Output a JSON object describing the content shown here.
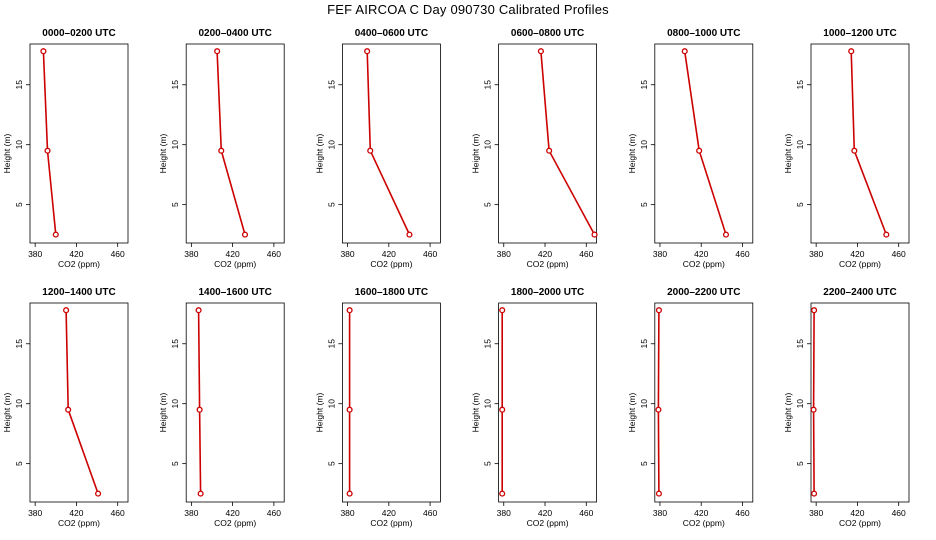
{
  "page": {
    "title": "FEF  AIRCOA C  Day 090730  Calibrated Profiles"
  },
  "chart_data": [
    {
      "type": "line",
      "title": "0000–0200 UTC",
      "xlabel": "CO2 (ppm)",
      "ylabel": "Height (m)",
      "xlim": [
        375,
        470
      ],
      "ylim": [
        1.8,
        18.4
      ],
      "xticks": [
        380,
        420,
        460
      ],
      "yticks": [
        5,
        10,
        15
      ],
      "x": [
        388,
        392,
        400
      ],
      "y": [
        17.8,
        9.5,
        2.5
      ],
      "color": "#cc0000"
    },
    {
      "type": "line",
      "title": "0200–0400 UTC",
      "xlabel": "CO2 (ppm)",
      "ylabel": "Height (m)",
      "xlim": [
        375,
        470
      ],
      "ylim": [
        1.8,
        18.4
      ],
      "xticks": [
        380,
        420,
        460
      ],
      "yticks": [
        5,
        10,
        15
      ],
      "x": [
        405,
        409,
        432
      ],
      "y": [
        17.8,
        9.5,
        2.5
      ],
      "color": "#cc0000"
    },
    {
      "type": "line",
      "title": "0400–0600 UTC",
      "xlabel": "CO2 (ppm)",
      "ylabel": "Height (m)",
      "xlim": [
        375,
        470
      ],
      "ylim": [
        1.8,
        18.4
      ],
      "xticks": [
        380,
        420,
        460
      ],
      "yticks": [
        5,
        10,
        15
      ],
      "x": [
        399,
        402,
        440
      ],
      "y": [
        17.8,
        9.5,
        2.5
      ],
      "color": "#cc0000"
    },
    {
      "type": "line",
      "title": "0600–0800 UTC",
      "xlabel": "CO2 (ppm)",
      "ylabel": "Height (m)",
      "xlim": [
        375,
        470
      ],
      "ylim": [
        1.8,
        18.4
      ],
      "xticks": [
        380,
        420,
        460
      ],
      "yticks": [
        5,
        10,
        15
      ],
      "x": [
        416,
        424,
        468
      ],
      "y": [
        17.8,
        9.5,
        2.5
      ],
      "color": "#cc0000"
    },
    {
      "type": "line",
      "title": "0800–1000 UTC",
      "xlabel": "CO2 (ppm)",
      "ylabel": "Height (m)",
      "xlim": [
        375,
        470
      ],
      "ylim": [
        1.8,
        18.4
      ],
      "xticks": [
        380,
        420,
        460
      ],
      "yticks": [
        5,
        10,
        15
      ],
      "x": [
        404,
        418,
        444
      ],
      "y": [
        17.8,
        9.5,
        2.5
      ],
      "color": "#cc0000"
    },
    {
      "type": "line",
      "title": "1000–1200 UTC",
      "xlabel": "CO2 (ppm)",
      "ylabel": "Height (m)",
      "xlim": [
        375,
        470
      ],
      "ylim": [
        1.8,
        18.4
      ],
      "xticks": [
        380,
        420,
        460
      ],
      "yticks": [
        5,
        10,
        15
      ],
      "x": [
        414,
        417,
        448
      ],
      "y": [
        17.8,
        9.5,
        2.5
      ],
      "color": "#cc0000"
    },
    {
      "type": "line",
      "title": "1200–1400 UTC",
      "xlabel": "CO2 (ppm)",
      "ylabel": "Height (m)",
      "xlim": [
        375,
        470
      ],
      "ylim": [
        1.8,
        18.4
      ],
      "xticks": [
        380,
        420,
        460
      ],
      "yticks": [
        5,
        10,
        15
      ],
      "x": [
        410,
        412,
        441
      ],
      "y": [
        17.8,
        9.5,
        2.5
      ],
      "color": "#cc0000"
    },
    {
      "type": "line",
      "title": "1400–1600 UTC",
      "xlabel": "CO2 (ppm)",
      "ylabel": "Height (m)",
      "xlim": [
        375,
        470
      ],
      "ylim": [
        1.8,
        18.4
      ],
      "xticks": [
        380,
        420,
        460
      ],
      "yticks": [
        5,
        10,
        15
      ],
      "x": [
        387,
        388,
        389
      ],
      "y": [
        17.8,
        9.5,
        2.5
      ],
      "color": "#cc0000"
    },
    {
      "type": "line",
      "title": "1600–1800 UTC",
      "xlabel": "CO2 (ppm)",
      "ylabel": "Height (m)",
      "xlim": [
        375,
        470
      ],
      "ylim": [
        1.8,
        18.4
      ],
      "xticks": [
        380,
        420,
        460
      ],
      "yticks": [
        5,
        10,
        15
      ],
      "x": [
        382,
        382,
        382
      ],
      "y": [
        17.8,
        9.5,
        2.5
      ],
      "color": "#cc0000"
    },
    {
      "type": "line",
      "title": "1800–2000 UTC",
      "xlabel": "CO2 (ppm)",
      "ylabel": "Height (m)",
      "xlim": [
        375,
        470
      ],
      "ylim": [
        1.8,
        18.4
      ],
      "xticks": [
        380,
        420,
        460
      ],
      "yticks": [
        5,
        10,
        15
      ],
      "x": [
        378.5,
        378.5,
        378.5
      ],
      "y": [
        17.8,
        9.5,
        2.5
      ],
      "color": "#cc0000"
    },
    {
      "type": "line",
      "title": "2000–2200 UTC",
      "xlabel": "CO2 (ppm)",
      "ylabel": "Height (m)",
      "xlim": [
        375,
        470
      ],
      "ylim": [
        1.8,
        18.4
      ],
      "xticks": [
        380,
        420,
        460
      ],
      "yticks": [
        5,
        10,
        15
      ],
      "x": [
        379,
        378.5,
        379
      ],
      "y": [
        17.8,
        9.5,
        2.5
      ],
      "color": "#cc0000"
    },
    {
      "type": "line",
      "title": "2200–2400 UTC",
      "xlabel": "CO2 (ppm)",
      "ylabel": "Height (m)",
      "xlim": [
        375,
        470
      ],
      "ylim": [
        1.8,
        18.4
      ],
      "xticks": [
        380,
        420,
        460
      ],
      "yticks": [
        5,
        10,
        15
      ],
      "x": [
        378,
        377.5,
        378
      ],
      "y": [
        17.8,
        9.5,
        2.5
      ],
      "color": "#cc0000"
    }
  ]
}
